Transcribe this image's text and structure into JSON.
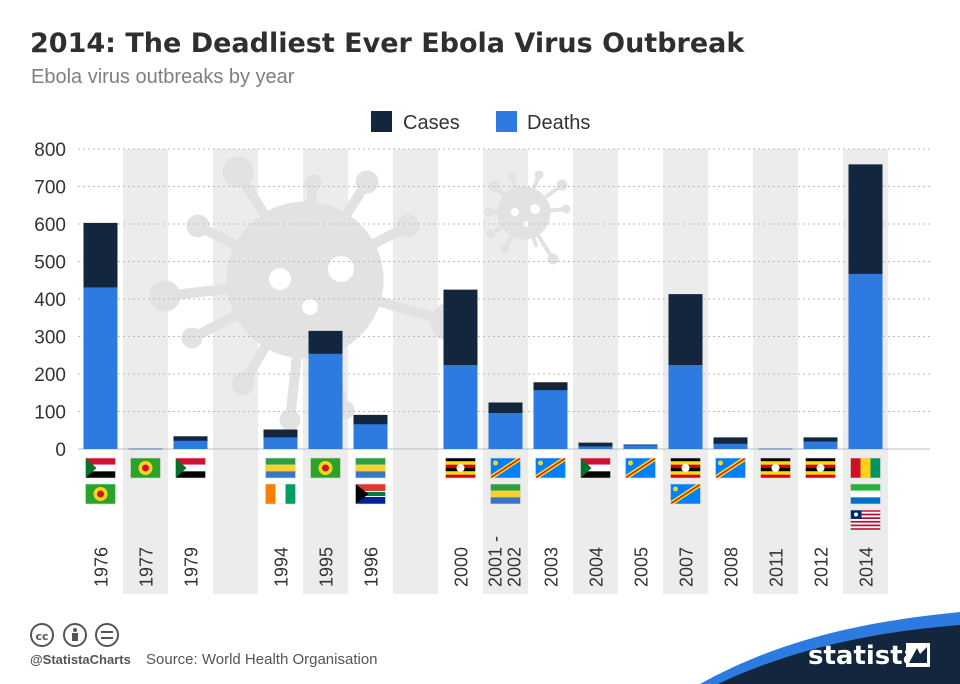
{
  "header": {
    "title": "2014: The Deadliest Ever Ebola Virus Outbreak",
    "subtitle": "Ebola virus outbreaks by year"
  },
  "colors": {
    "cases": "#13263d",
    "deaths": "#2d7ae0",
    "band": "#ececec",
    "virus": "#e2e2e2",
    "grid": "#bbbbbb",
    "brand_wave": "#13263d"
  },
  "icons": [
    "creative-commons-icon",
    "attribution-icon",
    "no-derivatives-icon",
    "statista-logo-icon",
    "virus-icon"
  ],
  "chart_data": {
    "type": "bar",
    "stacking": "overlay",
    "legend_position": "top-center",
    "grid": true,
    "ylim": [
      0,
      800
    ],
    "yticks": [
      0,
      100,
      200,
      300,
      400,
      500,
      600,
      700,
      800
    ],
    "categories": [
      "1976",
      "1977",
      "1979",
      "",
      "1994",
      "1995",
      "1996",
      "",
      "2000",
      "2001 - 2002",
      "2003",
      "2004",
      "2005",
      "2007",
      "2008",
      "2011",
      "2012",
      "2014"
    ],
    "series": [
      {
        "name": "Cases",
        "color": "#13263d",
        "values": [
          603,
          1,
          34,
          null,
          52,
          315,
          91,
          null,
          425,
          124,
          178,
          17,
          12,
          413,
          31,
          1,
          31,
          759
        ]
      },
      {
        "name": "Deaths",
        "color": "#2d7ae0",
        "values": [
          431,
          1,
          22,
          null,
          31,
          254,
          66,
          null,
          224,
          96,
          157,
          7,
          10,
          224,
          14,
          1,
          20,
          467
        ]
      }
    ],
    "flags": [
      [
        "sudan",
        "zaire"
      ],
      [
        "zaire"
      ],
      [
        "sudan"
      ],
      [],
      [
        "gabon",
        "ivory-coast"
      ],
      [
        "zaire"
      ],
      [
        "gabon",
        "south-africa"
      ],
      [],
      [
        "uganda"
      ],
      [
        "congo-drc",
        "gabon"
      ],
      [
        "congo-drc"
      ],
      [
        "sudan"
      ],
      [
        "congo-drc"
      ],
      [
        "uganda",
        "congo-drc"
      ],
      [
        "congo-drc"
      ],
      [
        "uganda"
      ],
      [
        "uganda"
      ],
      [
        "guinea",
        "sierra-leone",
        "liberia"
      ]
    ]
  },
  "footer": {
    "handle": "@StatistaCharts",
    "source": "Source: World Health Organisation",
    "brand": "statista"
  }
}
